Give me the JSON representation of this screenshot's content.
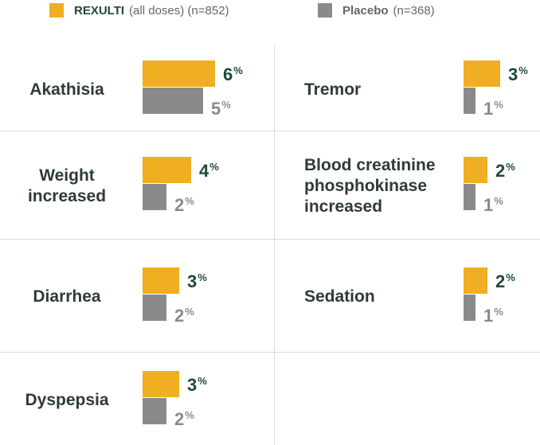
{
  "legend": {
    "rexulti_name": "REXULTI",
    "rexulti_note": "(all doses) (n=852)",
    "placebo_name": "Placebo",
    "placebo_note": "(n=368)"
  },
  "colors": {
    "rexulti": "#f0ae22",
    "placebo": "#8a8a8a",
    "label": "#2f3a3a",
    "accent": "#1e4a32"
  },
  "chart_data": {
    "type": "bar",
    "orientation": "horizontal",
    "unit": "%",
    "series_names": [
      "REXULTI (all doses) (n=852)",
      "Placebo (n=368)"
    ],
    "items": [
      {
        "label": "Akathisia",
        "rexulti": 6,
        "placebo": 5
      },
      {
        "label": "Tremor",
        "rexulti": 3,
        "placebo": 1
      },
      {
        "label": "Weight increased",
        "rexulti": 4,
        "placebo": 2
      },
      {
        "label": "Blood creatinine phosphokinase increased",
        "rexulti": 2,
        "placebo": 1
      },
      {
        "label": "Diarrhea",
        "rexulti": 3,
        "placebo": 2
      },
      {
        "label": "Sedation",
        "rexulti": 2,
        "placebo": 1
      },
      {
        "label": "Dyspepsia",
        "rexulti": 3,
        "placebo": 2
      }
    ]
  }
}
